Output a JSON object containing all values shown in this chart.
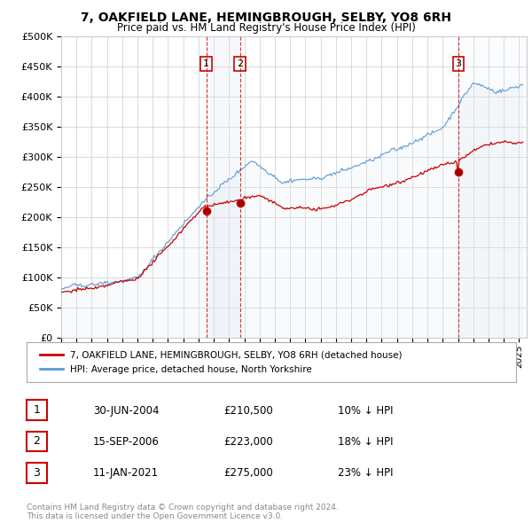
{
  "title": "7, OAKFIELD LANE, HEMINGBROUGH, SELBY, YO8 6RH",
  "subtitle": "Price paid vs. HM Land Registry's House Price Index (HPI)",
  "legend_label_red": "7, OAKFIELD LANE, HEMINGBROUGH, SELBY, YO8 6RH (detached house)",
  "legend_label_blue": "HPI: Average price, detached house, North Yorkshire",
  "footer": "Contains HM Land Registry data © Crown copyright and database right 2024.\nThis data is licensed under the Open Government Licence v3.0.",
  "transactions": [
    {
      "num": 1,
      "date": "30-JUN-2004",
      "price": 210500,
      "pct": "10%",
      "dir": "↓"
    },
    {
      "num": 2,
      "date": "15-SEP-2006",
      "price": 223000,
      "pct": "18%",
      "dir": "↓"
    },
    {
      "num": 3,
      "date": "11-JAN-2021",
      "price": 275000,
      "pct": "23%",
      "dir": "↓"
    }
  ],
  "transaction_dates_decimal": [
    2004.5,
    2006.71,
    2021.03
  ],
  "transaction_prices": [
    210500,
    223000,
    275000
  ],
  "ylim": [
    0,
    500000
  ],
  "yticks": [
    0,
    50000,
    100000,
    150000,
    200000,
    250000,
    300000,
    350000,
    400000,
    450000,
    500000
  ],
  "colors": {
    "red_line": "#cc0000",
    "blue_line": "#5b9bd5",
    "blue_fill": "#dce6f1",
    "vline": "#cc0000",
    "grid": "#cccccc",
    "background": "#ffffff",
    "legend_border": "#aaaaaa",
    "table_border": "#cc0000",
    "footer_text": "#888888",
    "shade_fill": "#dce6f1"
  }
}
